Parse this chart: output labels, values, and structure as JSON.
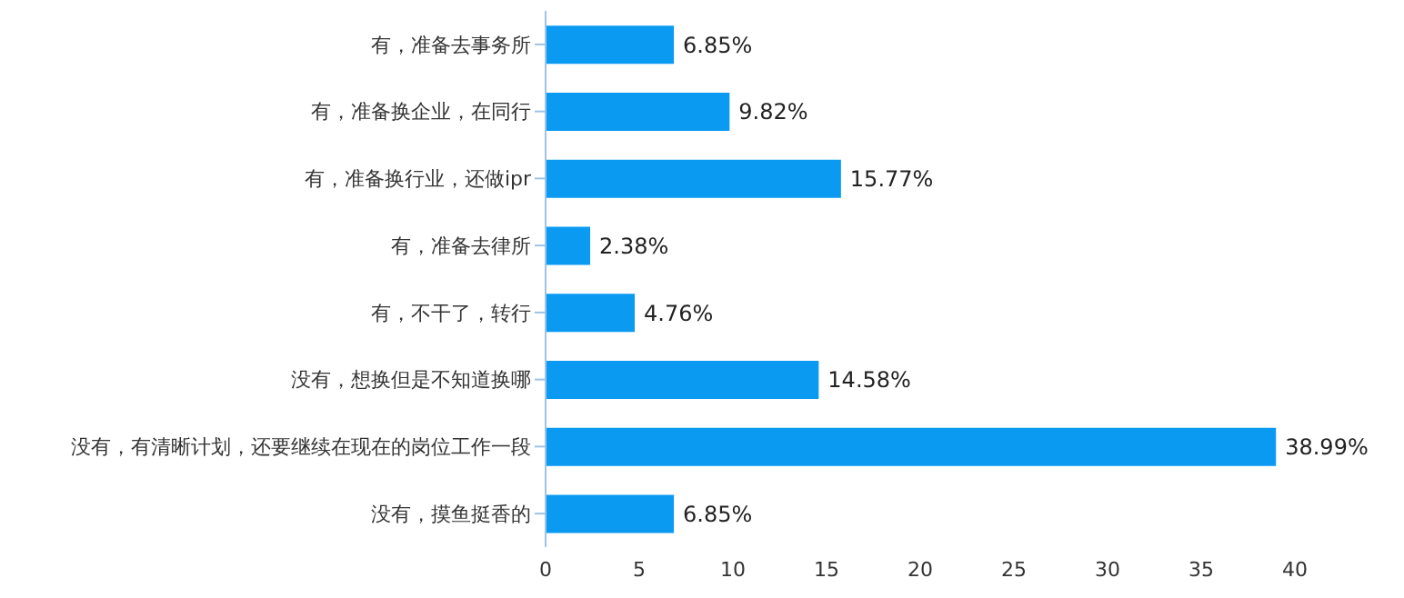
{
  "chart_data": {
    "type": "bar",
    "orientation": "horizontal",
    "categories": [
      "有，准备去事务所",
      "有，准备换企业，在同行",
      "有，准备换行业，还做ipr",
      "有，准备去律所",
      "有，不干了，转行",
      "没有，想换但是不知道换哪",
      "没有，有清晰计划，还要继续在现在的岗位工作一段",
      "没有，摸鱼挺香的"
    ],
    "values": [
      6.85,
      9.82,
      15.77,
      2.38,
      4.76,
      14.58,
      38.99,
      6.85
    ],
    "value_labels": [
      "6.85%",
      "9.82%",
      "15.77%",
      "2.38%",
      "4.76%",
      "14.58%",
      "38.99%",
      "6.85%"
    ],
    "color": "#0a9af2",
    "xlim": [
      0,
      40
    ],
    "xticks": [
      0,
      5,
      10,
      15,
      20,
      25,
      30,
      35,
      40
    ],
    "grid": false
  }
}
